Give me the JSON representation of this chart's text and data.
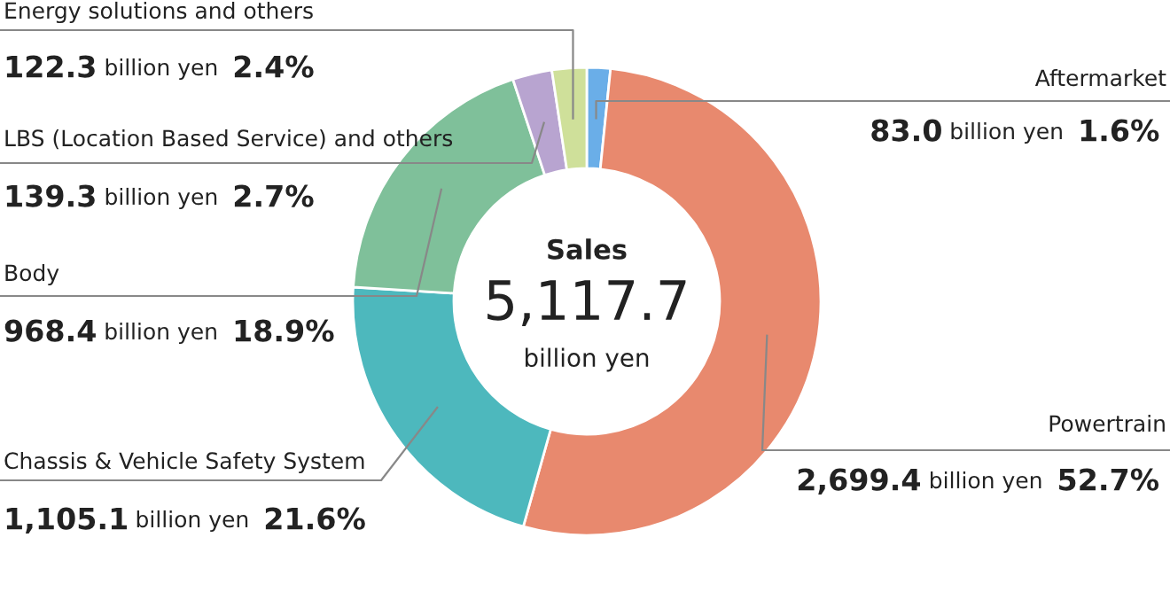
{
  "chart_data": {
    "type": "donut",
    "categories": [
      "Aftermarket",
      "Powertrain",
      "Chassis & Vehicle Safety System",
      "Body",
      "LBS (Location Based Service) and others",
      "Energy solutions and others"
    ],
    "values": [
      83.0,
      2699.4,
      1105.1,
      968.4,
      139.3,
      122.3
    ],
    "colors": [
      "#6aaee8",
      "#e8896e",
      "#4db8bd",
      "#7fc09a",
      "#b8a4d0",
      "#cfe09a"
    ],
    "value_labels": [
      "83.0",
      "2,699.4",
      "1,105.1",
      "968.4",
      "139.3",
      "122.3"
    ],
    "annotations": [
      "Sales",
      "5,117.7",
      "billion yen",
      "billion yen",
      "1.6%",
      "billion yen",
      "52.7%",
      "billion yen",
      "21.6%",
      "billion yen",
      "18.9%",
      "billion yen",
      "2.7%",
      "billion yen",
      "2.4%"
    ]
  }
}
